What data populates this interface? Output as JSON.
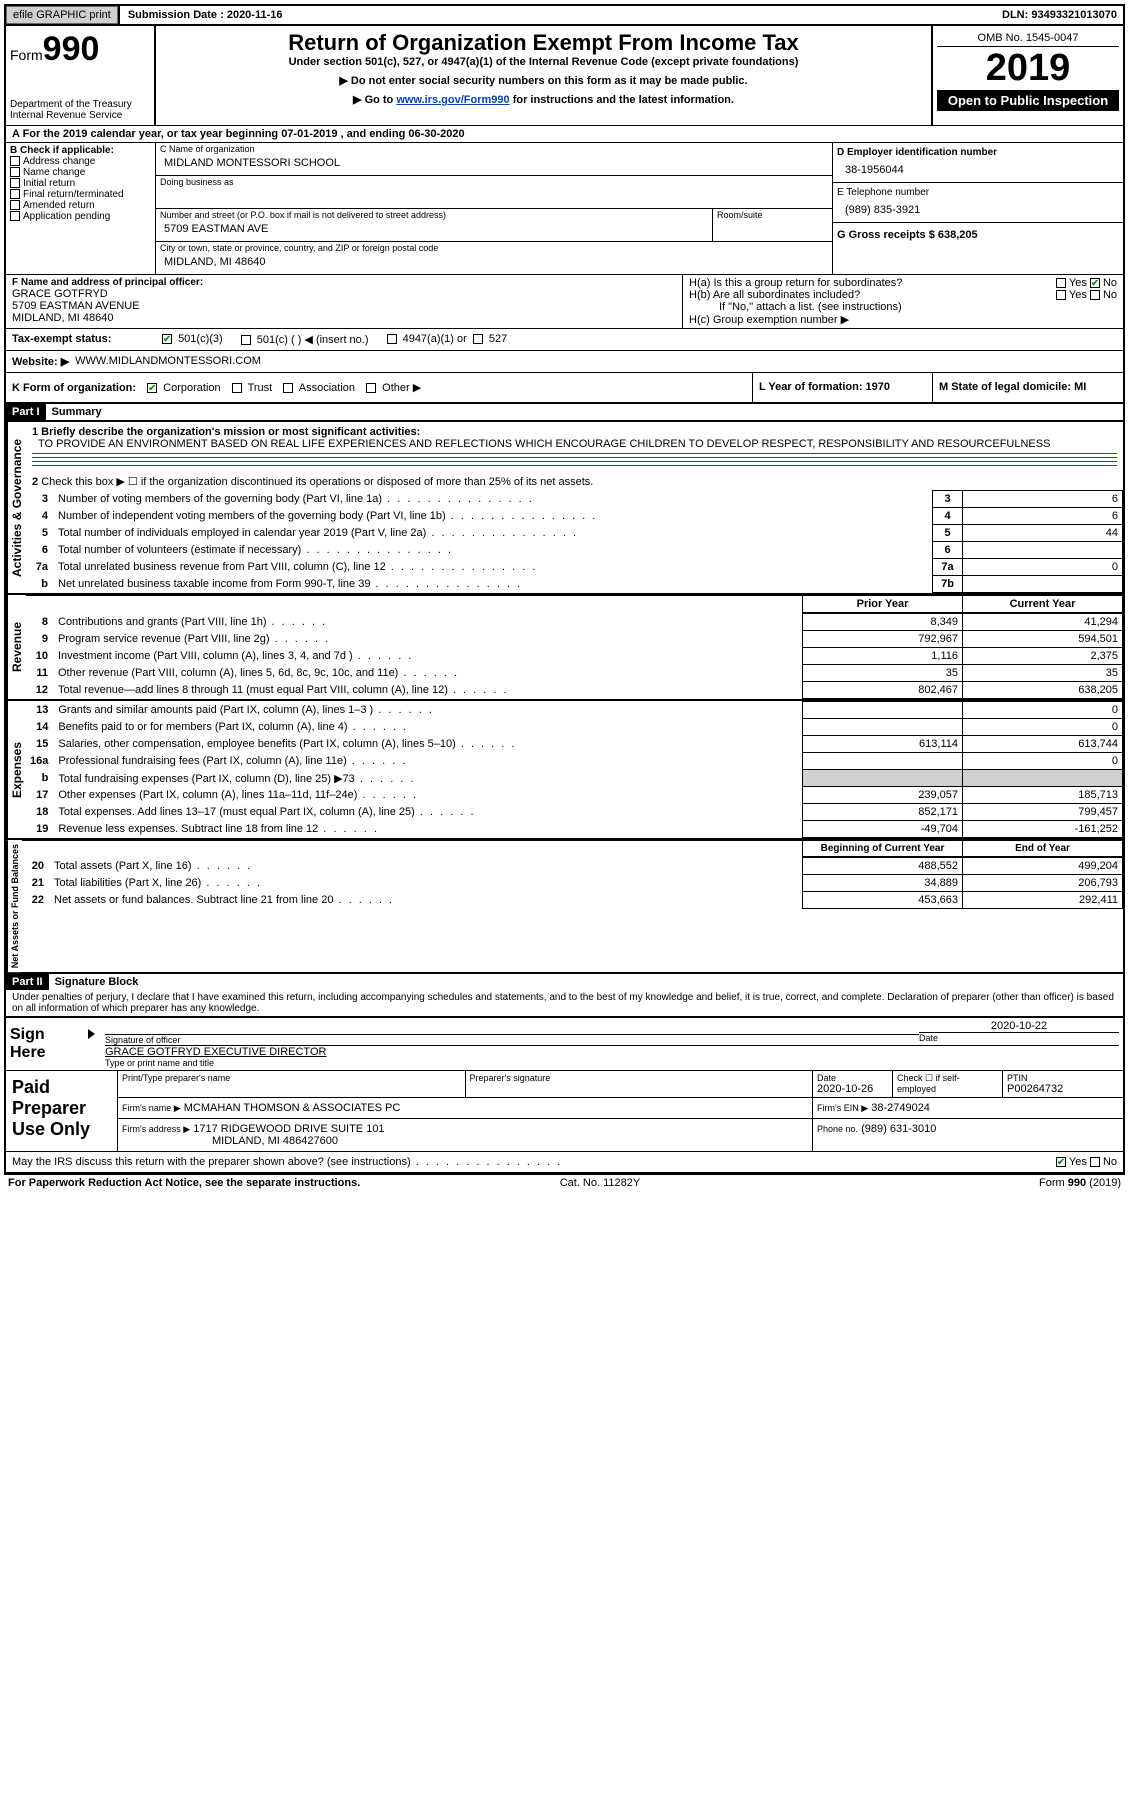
{
  "topbar": {
    "efile": "efile GRAPHIC print",
    "subdate_label": "Submission Date : 2020-11-16",
    "dln": "DLN: 93493321013070"
  },
  "header": {
    "form_label": "Form",
    "form_number": "990",
    "dept": "Department of the Treasury",
    "irs": "Internal Revenue Service",
    "title": "Return of Organization Exempt From Income Tax",
    "sub1": "Under section 501(c), 527, or 4947(a)(1) of the Internal Revenue Code (except private foundations)",
    "sub2": "▶ Do not enter social security numbers on this form as it may be made public.",
    "sub3_pre": "▶ Go to ",
    "sub3_link": "www.irs.gov/Form990",
    "sub3_post": " for instructions and the latest information.",
    "omb": "OMB No. 1545-0047",
    "year": "2019",
    "open": "Open to Public Inspection"
  },
  "period": "A For the 2019 calendar year, or tax year beginning 07-01-2019    , and ending 06-30-2020",
  "B": {
    "label": "B Check if applicable:",
    "items": [
      "Address change",
      "Name change",
      "Initial return",
      "Final return/terminated",
      "Amended return",
      "Application pending"
    ]
  },
  "C": {
    "name_label": "C Name of organization",
    "name": "MIDLAND MONTESSORI SCHOOL",
    "dba_label": "Doing business as",
    "addr_label": "Number and street (or P.O. box if mail is not delivered to street address)",
    "room_label": "Room/suite",
    "addr": "5709 EASTMAN AVE",
    "city_label": "City or town, state or province, country, and ZIP or foreign postal code",
    "city": "MIDLAND, MI  48640"
  },
  "D": {
    "label": "D Employer identification number",
    "val": "38-1956044"
  },
  "E": {
    "label": "E Telephone number",
    "val": "(989) 835-3921"
  },
  "G": {
    "label": "G Gross receipts $ 638,205"
  },
  "F": {
    "label": "F Name and address of principal officer:",
    "name": "GRACE GOTFRYD",
    "addr1": "5709 EASTMAN AVENUE",
    "addr2": "MIDLAND, MI  48640"
  },
  "H": {
    "a": "H(a)  Is this a group return for subordinates?",
    "b": "H(b)  Are all subordinates included?",
    "note": "If \"No,\" attach a list. (see instructions)",
    "c": "H(c)  Group exemption number ▶",
    "yes": "Yes",
    "no": "No"
  },
  "I": {
    "label": "Tax-exempt status:",
    "opts": [
      "501(c)(3)",
      "501(c) (  ) ◀ (insert no.)",
      "4947(a)(1) or",
      "527"
    ]
  },
  "J": {
    "label": "Website: ▶",
    "val": "WWW.MIDLANDMONTESSORI.COM"
  },
  "K": {
    "label": "K Form of organization:",
    "opts": [
      "Corporation",
      "Trust",
      "Association",
      "Other ▶"
    ]
  },
  "L": {
    "label": "L Year of formation: 1970"
  },
  "M": {
    "label": "M State of legal domicile: MI"
  },
  "partI": {
    "hdr": "Part I",
    "title": "Summary"
  },
  "summary": {
    "l1_label": "1  Briefly describe the organization's mission or most significant activities:",
    "l1_val": "TO PROVIDE AN ENVIRONMENT BASED ON REAL LIFE EXPERIENCES AND REFLECTIONS WHICH ENCOURAGE CHILDREN TO DEVELOP RESPECT, RESPONSIBILITY AND RESOURCEFULNESS",
    "l2": "Check this box ▶ ☐  if the organization discontinued its operations or disposed of more than 25% of its net assets.",
    "rows_ag": [
      {
        "n": "3",
        "t": "Number of voting members of the governing body (Part VI, line 1a)",
        "box": "3",
        "v": "6"
      },
      {
        "n": "4",
        "t": "Number of independent voting members of the governing body (Part VI, line 1b)",
        "box": "4",
        "v": "6"
      },
      {
        "n": "5",
        "t": "Total number of individuals employed in calendar year 2019 (Part V, line 2a)",
        "box": "5",
        "v": "44"
      },
      {
        "n": "6",
        "t": "Total number of volunteers (estimate if necessary)",
        "box": "6",
        "v": ""
      },
      {
        "n": "7a",
        "t": "Total unrelated business revenue from Part VIII, column (C), line 12",
        "box": "7a",
        "v": "0"
      },
      {
        "n": "b",
        "t": "Net unrelated business taxable income from Form 990-T, line 39",
        "box": "7b",
        "v": ""
      }
    ],
    "col_prior": "Prior Year",
    "col_curr": "Current Year",
    "rows_rev": [
      {
        "n": "8",
        "t": "Contributions and grants (Part VIII, line 1h)",
        "p": "8,349",
        "c": "41,294"
      },
      {
        "n": "9",
        "t": "Program service revenue (Part VIII, line 2g)",
        "p": "792,967",
        "c": "594,501"
      },
      {
        "n": "10",
        "t": "Investment income (Part VIII, column (A), lines 3, 4, and 7d )",
        "p": "1,116",
        "c": "2,375"
      },
      {
        "n": "11",
        "t": "Other revenue (Part VIII, column (A), lines 5, 6d, 8c, 9c, 10c, and 11e)",
        "p": "35",
        "c": "35"
      },
      {
        "n": "12",
        "t": "Total revenue—add lines 8 through 11 (must equal Part VIII, column (A), line 12)",
        "p": "802,467",
        "c": "638,205"
      }
    ],
    "rows_exp": [
      {
        "n": "13",
        "t": "Grants and similar amounts paid (Part IX, column (A), lines 1–3 )",
        "p": "",
        "c": "0"
      },
      {
        "n": "14",
        "t": "Benefits paid to or for members (Part IX, column (A), line 4)",
        "p": "",
        "c": "0"
      },
      {
        "n": "15",
        "t": "Salaries, other compensation, employee benefits (Part IX, column (A), lines 5–10)",
        "p": "613,114",
        "c": "613,744"
      },
      {
        "n": "16a",
        "t": "Professional fundraising fees (Part IX, column (A), line 11e)",
        "p": "",
        "c": "0"
      },
      {
        "n": "b",
        "t": "Total fundraising expenses (Part IX, column (D), line 25) ▶73",
        "p": "shade",
        "c": "shade"
      },
      {
        "n": "17",
        "t": "Other expenses (Part IX, column (A), lines 11a–11d, 11f–24e)",
        "p": "239,057",
        "c": "185,713"
      },
      {
        "n": "18",
        "t": "Total expenses. Add lines 13–17 (must equal Part IX, column (A), line 25)",
        "p": "852,171",
        "c": "799,457"
      },
      {
        "n": "19",
        "t": "Revenue less expenses. Subtract line 18 from line 12",
        "p": "-49,704",
        "c": "-161,252"
      }
    ],
    "col_begin": "Beginning of Current Year",
    "col_end": "End of Year",
    "rows_na": [
      {
        "n": "20",
        "t": "Total assets (Part X, line 16)",
        "p": "488,552",
        "c": "499,204"
      },
      {
        "n": "21",
        "t": "Total liabilities (Part X, line 26)",
        "p": "34,889",
        "c": "206,793"
      },
      {
        "n": "22",
        "t": "Net assets or fund balances. Subtract line 21 from line 20",
        "p": "453,663",
        "c": "292,411"
      }
    ]
  },
  "vlabels": {
    "ag": "Activities & Governance",
    "rev": "Revenue",
    "exp": "Expenses",
    "na": "Net Assets or Fund Balances"
  },
  "partII": {
    "hdr": "Part II",
    "title": "Signature Block"
  },
  "sigtext": "Under penalties of perjury, I declare that I have examined this return, including accompanying schedules and statements, and to the best of my knowledge and belief, it is true, correct, and complete. Declaration of preparer (other than officer) is based on all information of which preparer has any knowledge.",
  "sign": {
    "here": "Sign Here",
    "sig_officer": "Signature of officer",
    "date": "Date",
    "date_val": "2020-10-22",
    "name": "GRACE GOTFRYD  EXECUTIVE DIRECTOR",
    "typed": "Type or print name and title"
  },
  "paid": {
    "label": "Paid Preparer Use Only",
    "r1": [
      "Print/Type preparer's name",
      "Preparer's signature",
      "Date",
      "Check ☐ if self-employed",
      "PTIN"
    ],
    "r1v": [
      "",
      "",
      "2020-10-26",
      "",
      "P00264732"
    ],
    "firm_label": "Firm's name    ▶",
    "firm": "MCMAHAN THOMSON & ASSOCIATES PC",
    "ein_label": "Firm's EIN ▶",
    "ein": "38-2749024",
    "addr_label": "Firm's address ▶",
    "addr": "1717 RIDGEWOOD DRIVE SUITE 101",
    "city": "MIDLAND, MI  486427600",
    "phone_label": "Phone no.",
    "phone": "(989) 631-3010"
  },
  "discuss": "May the IRS discuss this return with the preparer shown above? (see instructions)",
  "footer": {
    "left": "For Paperwork Reduction Act Notice, see the separate instructions.",
    "mid": "Cat. No. 11282Y",
    "right": "Form 990 (2019)"
  }
}
